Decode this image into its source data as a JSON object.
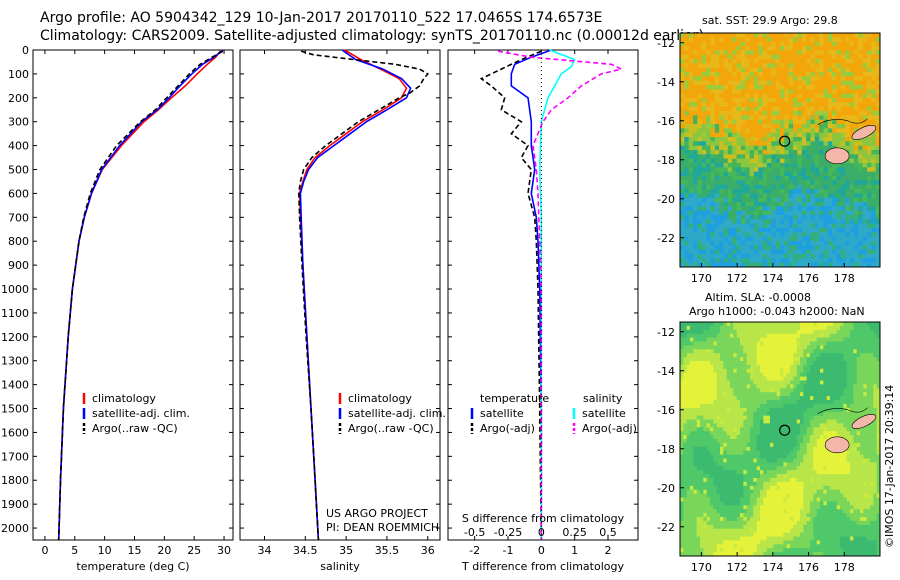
{
  "header": {
    "line1": "Argo profile: AO 5904342_129 10-Jan-2017 20170110_522 17.0465S 174.6573E",
    "line2": "Climatology: CARS2009. Satellite-adjusted climatology: synTS_20170110.nc (0.00012d earlier)"
  },
  "sst_title": "sat. SST: 29.9 Argo: 29.8",
  "sla_title1": "Altim. SLA: -0.0008",
  "sla_title2": "Argo h1000: -0.043 h2000: NaN",
  "credit": {
    "project": "US ARGO PROJECT",
    "pi": "PI: DEAN ROEMMICH"
  },
  "stamp": "©IMOS 17-Jan-2017 20:39:14",
  "colors": {
    "climatology": "#ff0000",
    "satellite": "#0000ff",
    "argo": "#000000",
    "satellite_salinity": "#00ffff",
    "argo_salinity": "#ff00ff",
    "land": "#f4b6a8"
  },
  "chart_data": [
    {
      "type": "line",
      "xlabel": "temperature (deg C)",
      "ylabel": "",
      "xlim": [
        -2,
        31.5
      ],
      "ylim": [
        2050,
        0
      ],
      "xticks": [
        0,
        5,
        10,
        15,
        20,
        25,
        30
      ],
      "yticks": [
        0,
        100,
        200,
        300,
        400,
        500,
        600,
        700,
        800,
        900,
        1000,
        1100,
        1200,
        1300,
        1400,
        1500,
        1600,
        1700,
        1800,
        1900,
        2000
      ],
      "legend": [
        "climatology",
        "satellite-adj. clim.",
        "Argo(..raw -QC)"
      ],
      "series": [
        {
          "name": "climatology",
          "depth": [
            0,
            30,
            60,
            100,
            150,
            200,
            250,
            300,
            400,
            500,
            600,
            700,
            800,
            1000,
            1200,
            1500,
            1800,
            2050
          ],
          "values": [
            29.5,
            28.6,
            27.2,
            25.5,
            23.5,
            21.2,
            19.0,
            16.6,
            12.8,
            9.6,
            7.8,
            6.6,
            5.7,
            4.6,
            3.9,
            3.1,
            2.6,
            2.3
          ]
        },
        {
          "name": "satellite-adj. clim.",
          "depth": [
            0,
            30,
            60,
            100,
            150,
            200,
            250,
            300,
            400,
            500,
            600,
            700,
            800,
            1000,
            1200,
            1500,
            1800,
            2050
          ],
          "values": [
            29.8,
            28.3,
            26.4,
            24.6,
            22.6,
            20.8,
            18.8,
            16.2,
            12.5,
            9.5,
            7.8,
            6.6,
            5.7,
            4.6,
            3.9,
            3.1,
            2.6,
            2.3
          ]
        },
        {
          "name": "Argo(..raw -QC)",
          "depth": [
            5,
            30,
            60,
            100,
            150,
            200,
            250,
            300,
            400,
            500,
            600,
            700,
            800,
            1000,
            1200,
            1500,
            1800,
            2050
          ],
          "values": [
            29.8,
            28.0,
            26.0,
            24.2,
            22.3,
            20.4,
            18.5,
            16.0,
            12.0,
            9.2,
            7.6,
            6.5,
            5.7,
            4.6,
            3.9,
            3.1,
            2.6,
            2.3
          ]
        }
      ]
    },
    {
      "type": "line",
      "xlabel": "salinity",
      "ylabel": "",
      "xlim": [
        33.7,
        36.15
      ],
      "ylim": [
        2050,
        0
      ],
      "xticks": [
        34,
        34.5,
        35,
        35.5,
        36
      ],
      "legend": [
        "climatology",
        "satellite-adj. clim.",
        "Argo(..raw -QC)"
      ],
      "series": [
        {
          "name": "climatology",
          "depth": [
            0,
            40,
            80,
            120,
            160,
            200,
            250,
            300,
            350,
            400,
            450,
            500,
            550,
            600,
            700,
            900,
            1200,
            1500,
            1800,
            2050
          ],
          "values": [
            34.98,
            35.18,
            35.42,
            35.65,
            35.74,
            35.68,
            35.45,
            35.2,
            35.0,
            34.8,
            34.62,
            34.52,
            34.47,
            34.43,
            34.44,
            34.47,
            34.52,
            34.57,
            34.62,
            34.66
          ]
        },
        {
          "name": "satellite-adj. clim.",
          "depth": [
            0,
            40,
            80,
            120,
            160,
            200,
            250,
            300,
            350,
            400,
            450,
            500,
            550,
            600,
            700,
            900,
            1200,
            1500,
            1800,
            2050
          ],
          "values": [
            34.95,
            35.12,
            35.45,
            35.68,
            35.79,
            35.74,
            35.5,
            35.25,
            35.05,
            34.85,
            34.65,
            34.54,
            34.48,
            34.44,
            34.45,
            34.47,
            34.52,
            34.57,
            34.62,
            34.66
          ]
        },
        {
          "name": "Argo(..raw -QC)",
          "depth": [
            5,
            20,
            40,
            60,
            80,
            100,
            120,
            150,
            180,
            200,
            250,
            300,
            350,
            400,
            450,
            500,
            550,
            600,
            700,
            900,
            1200,
            1500,
            1800,
            2050
          ],
          "values": [
            34.45,
            34.6,
            35.1,
            35.6,
            35.9,
            36.0,
            35.95,
            35.9,
            35.78,
            35.65,
            35.4,
            35.15,
            34.95,
            34.75,
            34.58,
            34.48,
            34.44,
            34.42,
            34.43,
            34.46,
            34.51,
            34.57,
            34.62,
            34.66
          ]
        }
      ]
    },
    {
      "type": "line",
      "xlabel": "T difference from climatology",
      "xlabel_top": "S difference from climatology",
      "xlim": [
        -2.8,
        2.9
      ],
      "ylim": [
        2050,
        0
      ],
      "xticks": [
        -2,
        -1,
        0,
        1,
        2
      ],
      "sticks": [
        "-0.5",
        "-0.25",
        "0",
        "0.25",
        "0.5"
      ],
      "legend_headers": [
        "temperature",
        "salinity"
      ],
      "legend": [
        "satellite",
        "Argo(-adj)",
        "satellite",
        "Argo(-adj)"
      ],
      "series": [
        {
          "name": "temperature satellite",
          "depth": [
            0,
            30,
            60,
            100,
            150,
            200,
            300,
            400,
            500,
            600,
            700,
            800,
            1000,
            1500,
            2050
          ],
          "values": [
            0.3,
            -0.3,
            -0.8,
            -0.9,
            -0.9,
            -0.4,
            -0.3,
            -0.3,
            -0.2,
            -0.3,
            -0.15,
            -0.1,
            -0.05,
            0,
            0
          ]
        },
        {
          "name": "temperature Argo(-adj)",
          "depth": [
            5,
            40,
            80,
            120,
            150,
            200,
            250,
            300,
            350,
            400,
            450,
            500,
            600,
            700,
            800,
            1000,
            1500,
            2050
          ],
          "values": [
            0.0,
            -0.6,
            -1.2,
            -1.8,
            -1.5,
            -1.1,
            -1.2,
            -0.6,
            -0.9,
            -0.4,
            -0.6,
            -0.3,
            -0.4,
            -0.2,
            -0.15,
            -0.1,
            -0.05,
            0
          ]
        },
        {
          "name": "salinity satellite",
          "depth": [
            0,
            40,
            70,
            100,
            150,
            200,
            300,
            500,
            700,
            900,
            1200,
            1500,
            2050
          ],
          "values": [
            0.25,
            1.0,
            0.9,
            0.6,
            0.4,
            0.2,
            0.0,
            -0.05,
            0.0,
            0.0,
            0.0,
            0.0,
            0.0
          ]
        },
        {
          "name": "salinity Argo(-adj)",
          "depth": [
            5,
            30,
            60,
            80,
            100,
            150,
            200,
            250,
            300,
            400,
            500,
            600,
            800,
            1000,
            1500,
            2050
          ],
          "values": [
            -1.3,
            -0.3,
            2.1,
            2.4,
            1.8,
            1.2,
            0.8,
            0.3,
            0.05,
            -0.25,
            -0.15,
            -0.1,
            -0.05,
            0.0,
            0.0,
            0.0
          ]
        }
      ]
    },
    {
      "type": "heatmap",
      "title": "sat. SST: 29.9 Argo: 29.8",
      "xlim": [
        168.8,
        180
      ],
      "ylim": [
        -23.5,
        -11.5
      ],
      "xticks": [
        170,
        172,
        174,
        176,
        178
      ],
      "yticks": [
        -12,
        -14,
        -16,
        -18,
        -20,
        -22
      ],
      "argo_position": {
        "lon": 174.66,
        "lat": -17.05
      }
    },
    {
      "type": "heatmap",
      "title": "Altim. SLA: -0.0008",
      "xlim": [
        168.8,
        180
      ],
      "ylim": [
        -23.5,
        -11.5
      ],
      "xticks": [
        170,
        172,
        174,
        176,
        178
      ],
      "yticks": [
        -12,
        -14,
        -16,
        -18,
        -20,
        -22
      ],
      "argo_position": {
        "lon": 174.66,
        "lat": -17.05
      }
    }
  ]
}
